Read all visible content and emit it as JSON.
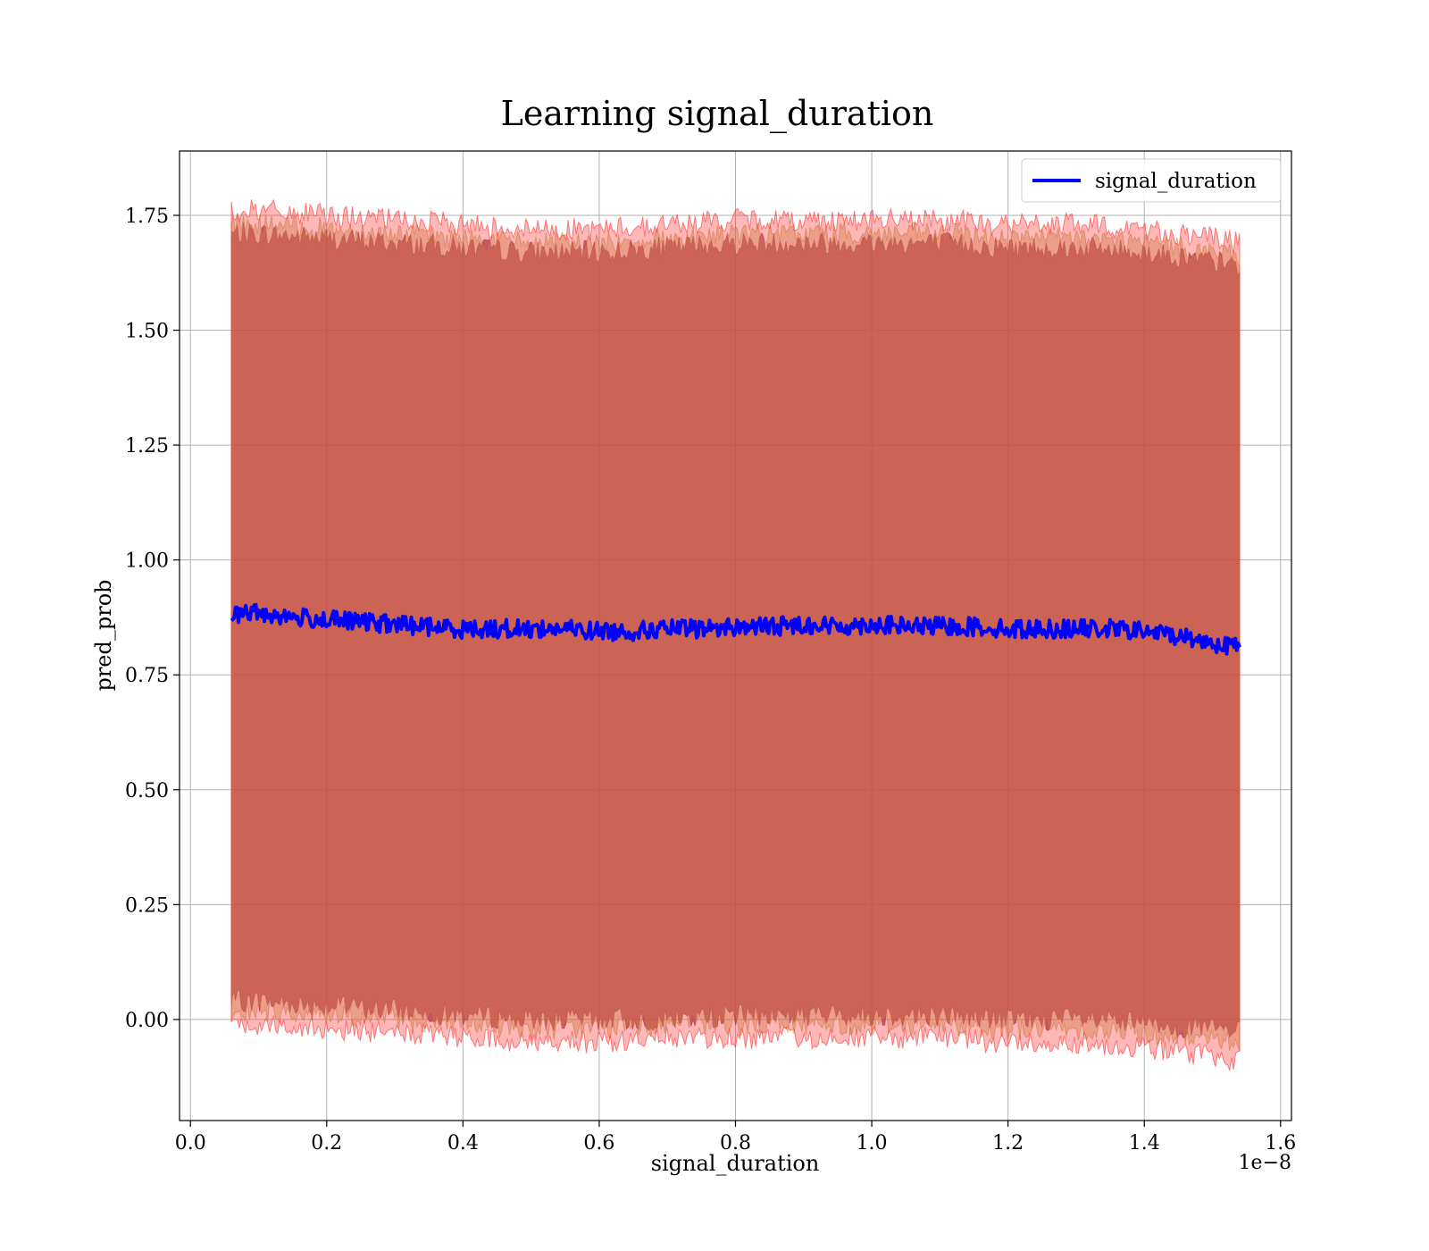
{
  "chart_data": {
    "type": "line",
    "title": "Learning signal_duration",
    "xlabel": "signal_duration",
    "ylabel": "pred_prob",
    "x_offset_label": "1e−8",
    "xlim": [
      -1.6e-10,
      1.616e-08
    ],
    "ylim": [
      -0.22,
      1.89
    ],
    "x_ticks": [
      0.0,
      0.2,
      0.4,
      0.6,
      0.8,
      1.0,
      1.2,
      1.4,
      1.6
    ],
    "x_tick_labels": [
      "0.0",
      "0.2",
      "0.4",
      "0.6",
      "0.8",
      "1.0",
      "1.2",
      "1.4",
      "1.6"
    ],
    "y_ticks": [
      0.0,
      0.25,
      0.5,
      0.75,
      1.0,
      1.25,
      1.5,
      1.75
    ],
    "y_tick_labels": [
      "0.00",
      "0.25",
      "0.50",
      "0.75",
      "1.00",
      "1.25",
      "1.50",
      "1.75"
    ],
    "grid": true,
    "legend": {
      "position": "upper right",
      "entries": [
        "signal_duration"
      ]
    },
    "series": [
      {
        "name": "signal_duration",
        "color": "#0000ff",
        "x": [
          6e-10,
          8e-10,
          1e-09,
          1.5e-09,
          2e-09,
          2.5e-09,
          3e-09,
          3.5e-09,
          4e-09,
          4.5e-09,
          5e-09,
          5.5e-09,
          6e-09,
          6.5e-09,
          7e-09,
          7.5e-09,
          8e-09,
          8.5e-09,
          9e-09,
          9.5e-09,
          1e-08,
          1.05e-08,
          1.1e-08,
          1.15e-08,
          1.2e-08,
          1.25e-08,
          1.3e-08,
          1.35e-08,
          1.4e-08,
          1.45e-08,
          1.5e-08,
          1.54e-08
        ],
        "y": [
          0.88,
          0.885,
          0.885,
          0.875,
          0.87,
          0.865,
          0.86,
          0.855,
          0.85,
          0.85,
          0.85,
          0.85,
          0.845,
          0.845,
          0.85,
          0.85,
          0.855,
          0.855,
          0.86,
          0.855,
          0.86,
          0.855,
          0.855,
          0.855,
          0.85,
          0.85,
          0.85,
          0.85,
          0.845,
          0.835,
          0.82,
          0.81
        ]
      }
    ],
    "bands": [
      {
        "name": "",
        "color": "#8b3a4f",
        "x": [
          6e-10,
          1e-09,
          2e-09,
          3e-09,
          4e-09,
          5e-09,
          6e-09,
          7e-09,
          8e-09,
          9e-09,
          1e-08,
          1.1e-08,
          1.2e-08,
          1.3e-08,
          1.4e-08,
          1.5e-08,
          1.54e-08
        ],
        "lower": [
          0.04,
          0.04,
          0.03,
          0.02,
          0.01,
          0.0,
          0.0,
          0.0,
          0.01,
          0.01,
          0.01,
          0.01,
          0.0,
          0.0,
          -0.01,
          -0.02,
          -0.03
        ],
        "upper": [
          1.71,
          1.71,
          1.7,
          1.69,
          1.68,
          1.67,
          1.67,
          1.68,
          1.69,
          1.69,
          1.69,
          1.69,
          1.68,
          1.68,
          1.67,
          1.65,
          1.64
        ]
      },
      {
        "name": "",
        "color": "#b8a050",
        "x": [
          6e-10,
          1e-09,
          2e-09,
          3e-09,
          4e-09,
          5e-09,
          6e-09,
          7e-09,
          8e-09,
          9e-09,
          1e-08,
          1.1e-08,
          1.2e-08,
          1.3e-08,
          1.4e-08,
          1.5e-08,
          1.54e-08
        ],
        "lower": [
          0.02,
          0.02,
          0.01,
          0.0,
          -0.01,
          -0.02,
          -0.02,
          -0.01,
          -0.01,
          -0.01,
          -0.01,
          -0.01,
          -0.02,
          -0.02,
          -0.03,
          -0.04,
          -0.05
        ],
        "upper": [
          1.73,
          1.73,
          1.72,
          1.71,
          1.7,
          1.69,
          1.69,
          1.7,
          1.71,
          1.71,
          1.71,
          1.71,
          1.7,
          1.7,
          1.69,
          1.67,
          1.66
        ]
      },
      {
        "name": "",
        "color": "#ff3030",
        "x": [
          6e-10,
          1e-09,
          2e-09,
          3e-09,
          4e-09,
          5e-09,
          6e-09,
          7e-09,
          8e-09,
          9e-09,
          1e-08,
          1.1e-08,
          1.2e-08,
          1.3e-08,
          1.4e-08,
          1.5e-08,
          1.54e-08
        ],
        "lower": [
          -0.01,
          -0.01,
          -0.02,
          -0.03,
          -0.04,
          -0.05,
          -0.05,
          -0.04,
          -0.04,
          -0.04,
          -0.04,
          -0.04,
          -0.05,
          -0.05,
          -0.06,
          -0.08,
          -0.09
        ],
        "upper": [
          1.76,
          1.76,
          1.75,
          1.74,
          1.73,
          1.72,
          1.72,
          1.73,
          1.74,
          1.74,
          1.74,
          1.74,
          1.73,
          1.73,
          1.72,
          1.7,
          1.69
        ]
      }
    ]
  }
}
